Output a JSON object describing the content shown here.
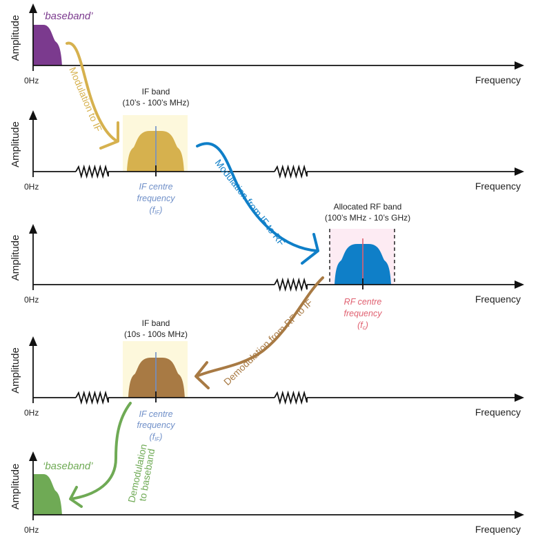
{
  "colors": {
    "baseband_purple": "#7b3a8e",
    "if_yellow": "#d6b14e",
    "rf_blue": "#0f7fc8",
    "if_brown": "#a87a44",
    "baseband_green": "#6faa55",
    "if_band_bg": "#fdf8dc",
    "rf_band_bg": "#fdebf3",
    "if_label_blue": "#6f8fc8",
    "rf_label_red": "#e06070"
  },
  "axes": {
    "y_label": "Amplitude",
    "x_label": "Frequency",
    "origin_label": "0Hz"
  },
  "rows": [
    {
      "band_label": "‘baseband’"
    },
    {
      "band_title": "IF band",
      "band_range": "(10’s - 100’s MHz)",
      "centre_line1": "IF centre",
      "centre_line2": "frequency",
      "centre_line3": "(f",
      "centre_sub": "IF",
      "centre_close": ")"
    },
    {
      "band_title": "Allocated RF band",
      "band_range": "(100’s MHz - 10’s GHz)",
      "centre_line1": "RF centre",
      "centre_line2": "frequency",
      "centre_line3": "(f",
      "centre_sub": "c",
      "centre_close": ")"
    },
    {
      "band_title": "IF band",
      "band_range": "(10s - 100s MHz)",
      "centre_line1": "IF centre",
      "centre_line2": "frequency",
      "centre_line3": "(f",
      "centre_sub": "IF",
      "centre_close": ")"
    },
    {
      "band_label": "‘baseband’"
    }
  ],
  "arrows": {
    "mod_if": "Modulation to IF",
    "mod_rf": "Modulation from IF to RF",
    "demod_if": "Demodulation from RF to IF",
    "demod_bb_line1": "Demodulation",
    "demod_bb_line2": "to baseband"
  }
}
